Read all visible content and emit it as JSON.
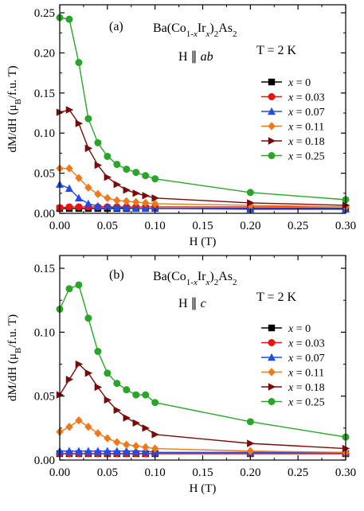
{
  "chart_data": [
    {
      "type": "line",
      "panel_label": "(a)",
      "compound": {
        "base": "Ba(Co",
        "sub1": "1-",
        "italic1": "x",
        "mid": "Ir",
        "sub2": "",
        "italic2": "x",
        "tail": ")",
        "sub3": "2",
        "tail2": "As",
        "sub4": "2"
      },
      "field_dir": {
        "prefix": "H ∥ ",
        "italic": "ab"
      },
      "temperature": "T = 2 K",
      "xlabel": "H (T)",
      "ylabel": {
        "pre": "dM/dH (μ",
        "sub": "B",
        "post": "/f.u. T)"
      },
      "xlim": [
        0,
        0.3
      ],
      "ylim": [
        0,
        0.26
      ],
      "xticks": [
        "0.00",
        "0.05",
        "0.10",
        "0.15",
        "0.20",
        "0.25",
        "0.30"
      ],
      "yticks": [
        "0.00",
        "0.05",
        "0.10",
        "0.15",
        "0.20",
        "0.25"
      ],
      "legend_position": "right",
      "series": [
        {
          "name": "= 0",
          "var": "x",
          "color": "#000000",
          "marker": "square",
          "x": [
            0.0,
            0.01,
            0.02,
            0.03,
            0.04,
            0.05,
            0.06,
            0.07,
            0.08,
            0.09,
            0.1,
            0.2,
            0.3
          ],
          "y": [
            0.006,
            0.006,
            0.006,
            0.006,
            0.006,
            0.006,
            0.006,
            0.006,
            0.006,
            0.006,
            0.006,
            0.006,
            0.006
          ]
        },
        {
          "name": "= 0.03",
          "var": "x",
          "color": "#ee1111",
          "marker": "circle",
          "x": [
            0.0,
            0.01,
            0.02,
            0.03,
            0.04,
            0.05,
            0.06,
            0.07,
            0.08,
            0.09,
            0.1,
            0.2,
            0.3
          ],
          "y": [
            0.007,
            0.008,
            0.008,
            0.008,
            0.008,
            0.008,
            0.008,
            0.008,
            0.008,
            0.008,
            0.008,
            0.008,
            0.008
          ]
        },
        {
          "name": "= 0.07",
          "var": "x",
          "color": "#1f4ee0",
          "marker": "triangle",
          "x": [
            0.0,
            0.01,
            0.02,
            0.03,
            0.04,
            0.05,
            0.06,
            0.07,
            0.08,
            0.09,
            0.1,
            0.2,
            0.3
          ],
          "y": [
            0.036,
            0.031,
            0.019,
            0.012,
            0.009,
            0.008,
            0.007,
            0.007,
            0.006,
            0.006,
            0.006,
            0.005,
            0.005
          ]
        },
        {
          "name": "= 0.11",
          "var": "x",
          "color": "#f07818",
          "marker": "diamond",
          "x": [
            0.0,
            0.01,
            0.02,
            0.03,
            0.04,
            0.05,
            0.06,
            0.07,
            0.08,
            0.09,
            0.1,
            0.2,
            0.3
          ],
          "y": [
            0.056,
            0.056,
            0.044,
            0.032,
            0.024,
            0.019,
            0.016,
            0.015,
            0.014,
            0.013,
            0.012,
            0.01,
            0.008
          ]
        },
        {
          "name": "= 0.18",
          "var": "x",
          "color": "#7a0a0a",
          "marker": "triangle-right",
          "x": [
            0.0,
            0.01,
            0.02,
            0.03,
            0.04,
            0.05,
            0.06,
            0.07,
            0.08,
            0.09,
            0.1,
            0.2,
            0.3
          ],
          "y": [
            0.126,
            0.129,
            0.112,
            0.081,
            0.06,
            0.045,
            0.036,
            0.029,
            0.025,
            0.022,
            0.019,
            0.013,
            0.01
          ]
        },
        {
          "name": "= 0.25",
          "var": "x",
          "color": "#2aa52a",
          "marker": "circle",
          "x": [
            0.0,
            0.01,
            0.02,
            0.03,
            0.04,
            0.05,
            0.06,
            0.07,
            0.08,
            0.09,
            0.1,
            0.2,
            0.3
          ],
          "y": [
            0.244,
            0.242,
            0.188,
            0.118,
            0.088,
            0.071,
            0.061,
            0.055,
            0.051,
            0.047,
            0.043,
            0.026,
            0.017
          ]
        }
      ]
    },
    {
      "type": "line",
      "panel_label": "(b)",
      "compound": {
        "base": "Ba(Co",
        "sub1": "1-",
        "italic1": "x",
        "mid": "Ir",
        "sub2": "",
        "italic2": "x",
        "tail": ")",
        "sub3": "2",
        "tail2": "As",
        "sub4": "2"
      },
      "field_dir": {
        "prefix": "H ∥ ",
        "italic": "c"
      },
      "temperature": "T = 2 K",
      "xlabel": "H (T)",
      "ylabel": {
        "pre": "dM/dH (μ",
        "sub": "B",
        "post": "/f.u. T)"
      },
      "xlim": [
        0,
        0.3
      ],
      "ylim": [
        0,
        0.16
      ],
      "xticks": [
        "0.00",
        "0.05",
        "0.10",
        "0.15",
        "0.20",
        "0.25",
        "0.30"
      ],
      "yticks": [
        "0.00",
        "0.05",
        "0.10",
        "0.15"
      ],
      "legend_position": "right",
      "series": [
        {
          "name": "= 0",
          "var": "x",
          "color": "#000000",
          "marker": "square",
          "x": [
            0.0,
            0.01,
            0.02,
            0.03,
            0.04,
            0.05,
            0.06,
            0.07,
            0.08,
            0.09,
            0.1,
            0.2,
            0.3
          ],
          "y": [
            0.005,
            0.005,
            0.005,
            0.005,
            0.005,
            0.005,
            0.005,
            0.005,
            0.005,
            0.005,
            0.005,
            0.005,
            0.005
          ]
        },
        {
          "name": "= 0.03",
          "var": "x",
          "color": "#ee1111",
          "marker": "circle",
          "x": [
            0.0,
            0.01,
            0.02,
            0.03,
            0.04,
            0.05,
            0.06,
            0.07,
            0.08,
            0.09,
            0.1,
            0.2,
            0.3
          ],
          "y": [
            0.005,
            0.005,
            0.005,
            0.005,
            0.005,
            0.005,
            0.005,
            0.005,
            0.005,
            0.005,
            0.005,
            0.005,
            0.005
          ]
        },
        {
          "name": "= 0.07",
          "var": "x",
          "color": "#1f4ee0",
          "marker": "triangle",
          "x": [
            0.0,
            0.01,
            0.02,
            0.03,
            0.04,
            0.05,
            0.06,
            0.07,
            0.08,
            0.09,
            0.1,
            0.2,
            0.3
          ],
          "y": [
            0.007,
            0.007,
            0.007,
            0.007,
            0.007,
            0.007,
            0.007,
            0.007,
            0.007,
            0.007,
            0.006,
            0.006,
            0.006
          ]
        },
        {
          "name": "= 0.11",
          "var": "x",
          "color": "#f07818",
          "marker": "diamond",
          "x": [
            0.0,
            0.01,
            0.02,
            0.03,
            0.04,
            0.05,
            0.06,
            0.07,
            0.08,
            0.09,
            0.1,
            0.2,
            0.3
          ],
          "y": [
            0.022,
            0.026,
            0.031,
            0.026,
            0.021,
            0.017,
            0.014,
            0.012,
            0.011,
            0.01,
            0.009,
            0.007,
            0.006
          ]
        },
        {
          "name": "= 0.18",
          "var": "x",
          "color": "#7a0a0a",
          "marker": "triangle-right",
          "x": [
            0.0,
            0.01,
            0.02,
            0.03,
            0.04,
            0.05,
            0.06,
            0.07,
            0.08,
            0.09,
            0.1,
            0.2,
            0.3
          ],
          "y": [
            0.051,
            0.063,
            0.075,
            0.068,
            0.057,
            0.047,
            0.039,
            0.033,
            0.029,
            0.025,
            0.02,
            0.013,
            0.009
          ]
        },
        {
          "name": "= 0.25",
          "var": "x",
          "color": "#2aa52a",
          "marker": "circle",
          "x": [
            0.0,
            0.01,
            0.02,
            0.03,
            0.04,
            0.05,
            0.06,
            0.07,
            0.08,
            0.09,
            0.1,
            0.2,
            0.3
          ],
          "y": [
            0.118,
            0.134,
            0.137,
            0.111,
            0.085,
            0.068,
            0.06,
            0.055,
            0.051,
            0.051,
            0.045,
            0.03,
            0.018
          ]
        }
      ]
    }
  ]
}
